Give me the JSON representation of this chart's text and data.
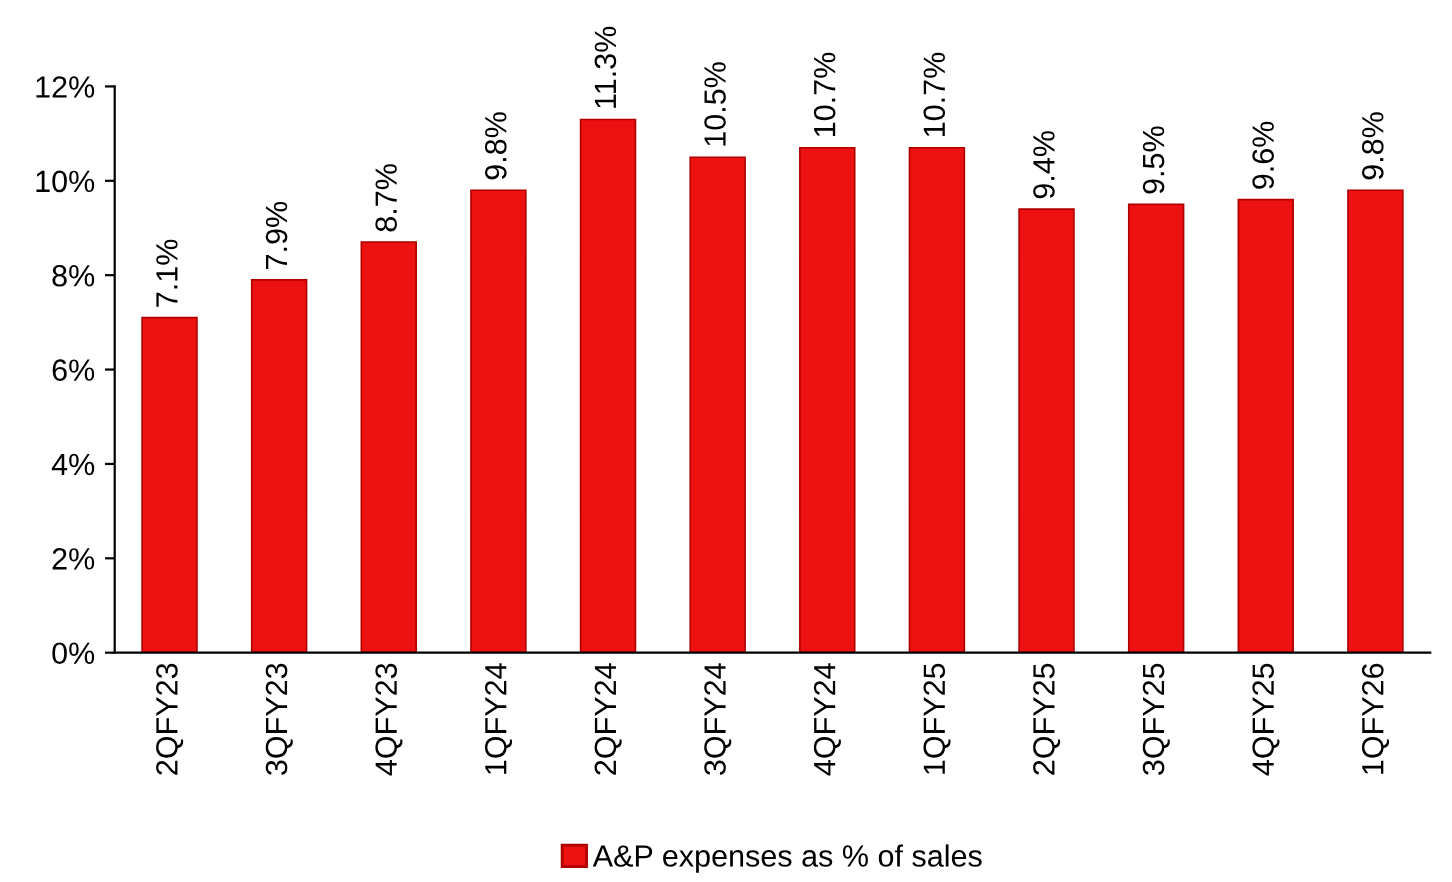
{
  "chart_data": {
    "type": "bar",
    "categories": [
      "2QFY23",
      "3QFY23",
      "4QFY23",
      "1QFY24",
      "2QFY24",
      "3QFY24",
      "4QFY24",
      "1QFY25",
      "2QFY25",
      "3QFY25",
      "4QFY25",
      "1QFY26"
    ],
    "series": [
      {
        "name": "A&P expenses as % of sales",
        "color": "#ee1111",
        "values": [
          7.1,
          7.9,
          8.7,
          9.8,
          11.3,
          10.5,
          10.7,
          10.7,
          9.4,
          9.5,
          9.6,
          9.8
        ],
        "value_labels": [
          "7.1%",
          "7.9%",
          "8.7%",
          "9.8%",
          "11.3%",
          "10.5%",
          "10.7%",
          "10.7%",
          "9.4%",
          "9.5%",
          "9.6%",
          "9.8%"
        ]
      }
    ],
    "ylim": [
      0,
      12
    ],
    "yticks": [
      {
        "value": 0,
        "label": "0%"
      },
      {
        "value": 2,
        "label": "2%"
      },
      {
        "value": 4,
        "label": "4%"
      },
      {
        "value": 6,
        "label": "6%"
      },
      {
        "value": 8,
        "label": "8%"
      },
      {
        "value": 10,
        "label": "10%"
      },
      {
        "value": 12,
        "label": "12%"
      }
    ],
    "grid": false,
    "legend": "bottom"
  }
}
